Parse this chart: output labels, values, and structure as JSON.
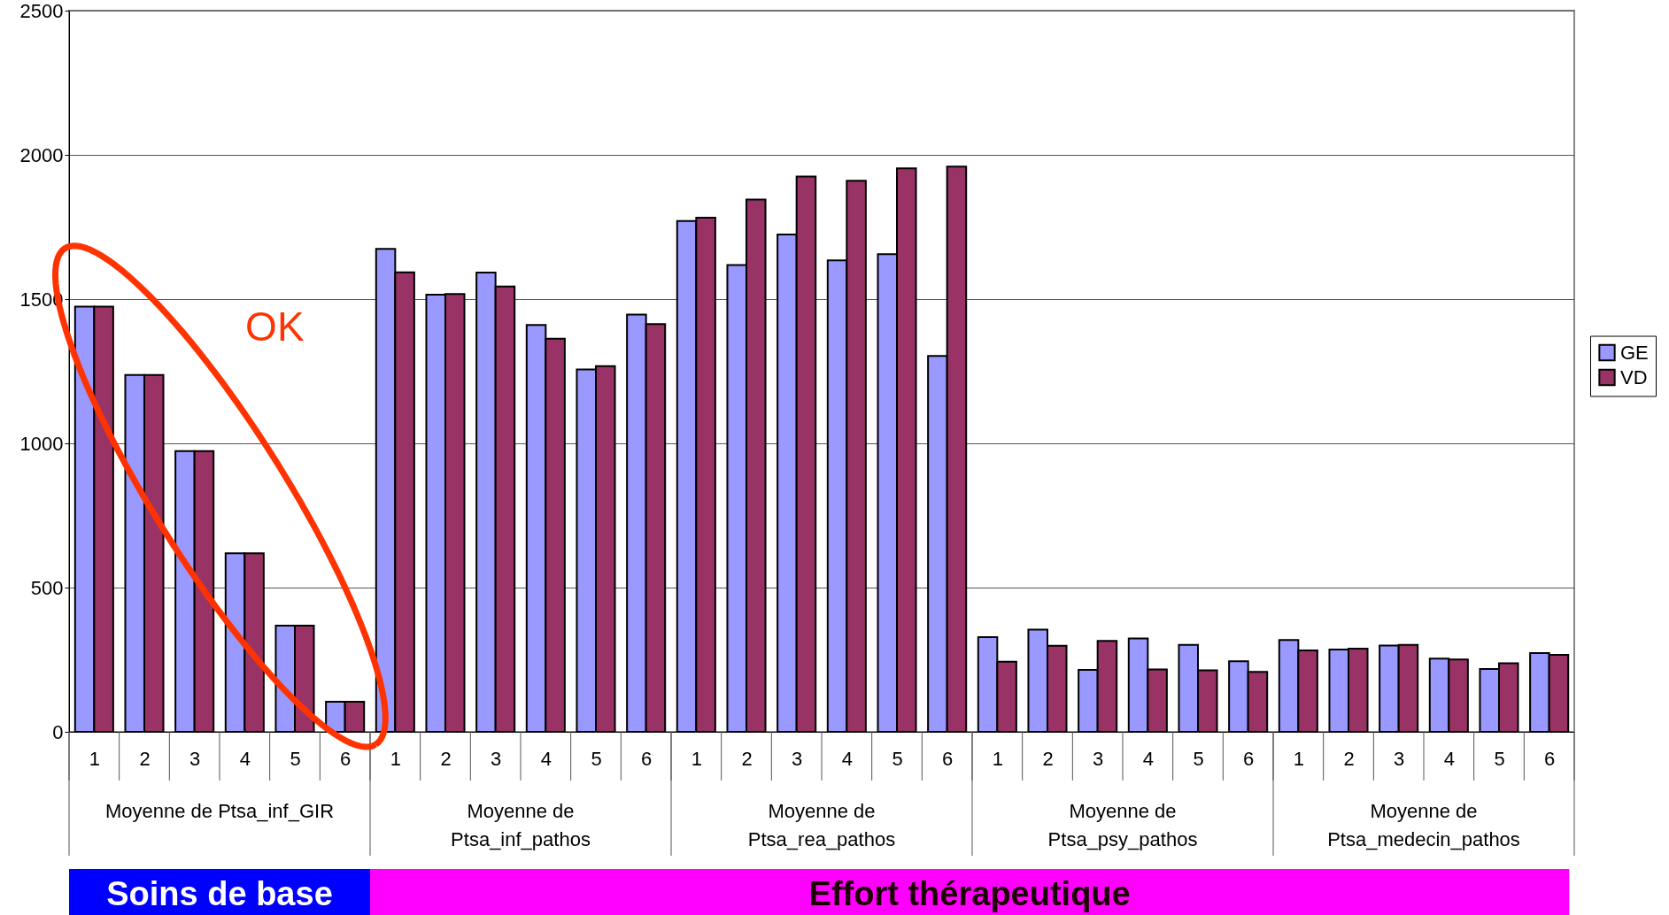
{
  "chart_data": {
    "type": "bar",
    "categories": [
      "1",
      "2",
      "3",
      "4",
      "5",
      "6",
      "1",
      "2",
      "3",
      "4",
      "5",
      "6",
      "1",
      "2",
      "3",
      "4",
      "5",
      "6",
      "1",
      "2",
      "3",
      "4",
      "5",
      "6",
      "1",
      "2",
      "3",
      "4",
      "5",
      "6"
    ],
    "series": [
      {
        "name": "GE",
        "color": "#9999ff",
        "values": [
          1474,
          1237,
          973,
          619,
          368,
          104,
          1674,
          1515,
          1592,
          1410,
          1256,
          1446,
          1771,
          1618,
          1724,
          1634,
          1656,
          1303,
          328,
          354,
          215,
          324,
          301,
          245,
          318,
          285,
          299,
          254,
          218,
          273
        ]
      },
      {
        "name": "VD",
        "color": "#993366",
        "values": [
          1474,
          1237,
          973,
          619,
          368,
          104,
          1593,
          1518,
          1544,
          1363,
          1268,
          1413,
          1782,
          1845,
          1925,
          1910,
          1953,
          1959,
          243,
          298,
          315,
          216,
          213,
          208,
          282,
          288,
          301,
          251,
          238,
          267
        ]
      }
    ],
    "ylim": [
      0,
      2500
    ],
    "yticks": [
      0,
      500,
      1000,
      1500,
      2000,
      2500
    ],
    "grid": "y",
    "legend": "right",
    "annotations": [
      "Moyenne de Ptsa_inf_GIR",
      "Moyenne de Ptsa_inf_pathos",
      "Moyenne de Ptsa_rea_pathos",
      "Moyenne de Ptsa_psy_pathos",
      "Moyenne de Ptsa_medecin_pathos",
      "Soins de base",
      "Effort thérapeutique",
      "OK"
    ]
  }
}
